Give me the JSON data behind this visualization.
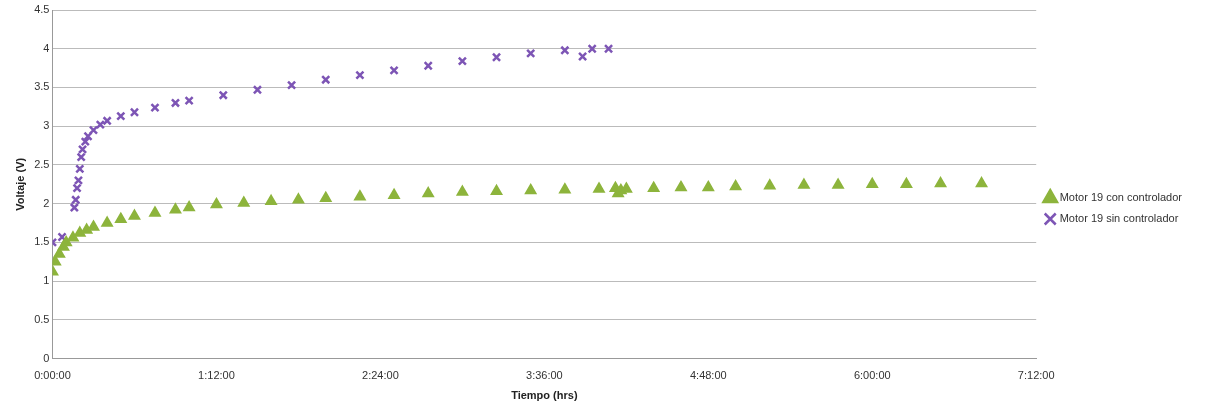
{
  "chart_data": {
    "type": "scatter",
    "xlabel": "Tiempo (hrs)",
    "ylabel": "Voltaje (V)",
    "xlim": [
      0,
      7.2
    ],
    "xticks": [
      {
        "value": 0,
        "label": "0:00:00"
      },
      {
        "value": 1.2,
        "label": "1:12:00"
      },
      {
        "value": 2.4,
        "label": "2:24:00"
      },
      {
        "value": 3.6,
        "label": "3:36:00"
      },
      {
        "value": 4.8,
        "label": "4:48:00"
      },
      {
        "value": 6,
        "label": "6:00:00"
      },
      {
        "value": 7.2,
        "label": "7:12:00"
      }
    ],
    "ylim": [
      0,
      4.5
    ],
    "yticks": [
      0,
      0.5,
      1,
      1.5,
      2,
      2.5,
      3,
      3.5,
      4,
      4.5
    ],
    "grid": "y",
    "legend": "right",
    "series": [
      {
        "name": "Motor 19 con controlador",
        "color": "#8db43c",
        "marker": "triangle",
        "x": [
          0,
          0.02,
          0.05,
          0.08,
          0.1,
          0.15,
          0.2,
          0.25,
          0.3,
          0.4,
          0.5,
          0.6,
          0.75,
          0.9,
          1,
          1.2,
          1.4,
          1.6,
          1.8,
          2,
          2.25,
          2.5,
          2.75,
          3,
          3.25,
          3.5,
          3.75,
          4,
          4.12,
          4.14,
          4.16,
          4.2,
          4.4,
          4.6,
          4.8,
          5,
          5.25,
          5.5,
          5.75,
          6,
          6.25,
          6.5,
          6.8
        ],
        "values": [
          1.12,
          1.25,
          1.35,
          1.44,
          1.5,
          1.56,
          1.62,
          1.66,
          1.7,
          1.75,
          1.8,
          1.84,
          1.88,
          1.92,
          1.95,
          1.99,
          2.01,
          2.03,
          2.05,
          2.07,
          2.09,
          2.11,
          2.13,
          2.15,
          2.16,
          2.17,
          2.18,
          2.19,
          2.2,
          2.13,
          2.17,
          2.19,
          2.2,
          2.21,
          2.21,
          2.22,
          2.23,
          2.24,
          2.24,
          2.25,
          2.25,
          2.26,
          2.26
        ]
      },
      {
        "name": "Motor 19 sin controlador",
        "color": "#7d55b5",
        "marker": "cross",
        "x": [
          0,
          0.07,
          0.16,
          0.17,
          0.18,
          0.19,
          0.2,
          0.21,
          0.22,
          0.24,
          0.26,
          0.3,
          0.35,
          0.4,
          0.5,
          0.6,
          0.75,
          0.9,
          1,
          1.25,
          1.5,
          1.75,
          2,
          2.25,
          2.5,
          2.75,
          3,
          3.25,
          3.5,
          3.75,
          3.88,
          3.95,
          4.07
        ],
        "values": [
          1.5,
          1.57,
          1.95,
          2.05,
          2.2,
          2.3,
          2.45,
          2.6,
          2.7,
          2.8,
          2.87,
          2.95,
          3.02,
          3.07,
          3.13,
          3.18,
          3.24,
          3.3,
          3.33,
          3.4,
          3.47,
          3.53,
          3.6,
          3.66,
          3.72,
          3.78,
          3.84,
          3.89,
          3.94,
          3.98,
          3.9,
          4,
          4
        ]
      }
    ]
  }
}
